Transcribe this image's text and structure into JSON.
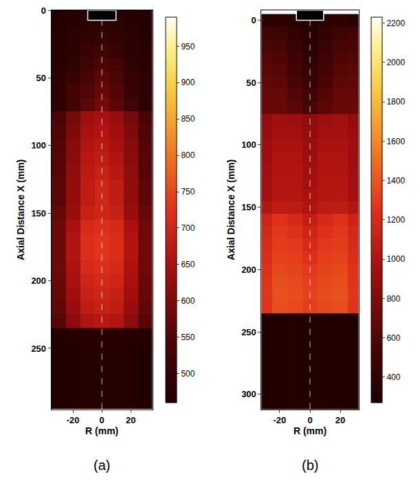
{
  "chart_data": [
    {
      "type": "heatmap",
      "title": "(a)",
      "x_label": "R (mm)",
      "y_label": "Axial Distance X (mm)",
      "x": [
        -30,
        -20,
        -10,
        0,
        10,
        20,
        30
      ],
      "y": [
        0,
        10,
        20,
        30,
        40,
        50,
        60,
        70,
        80,
        90,
        100,
        110,
        120,
        130,
        140,
        150,
        160,
        170,
        180,
        190,
        200,
        210,
        220,
        230,
        240,
        250,
        260,
        270,
        280,
        290
      ],
      "cells": [
        [
          470,
          475,
          480,
          480,
          480,
          475,
          470
        ],
        [
          470,
          480,
          485,
          490,
          485,
          480,
          470
        ],
        [
          475,
          485,
          495,
          500,
          495,
          485,
          475
        ],
        [
          480,
          490,
          510,
          520,
          510,
          490,
          480
        ],
        [
          480,
          495,
          520,
          540,
          525,
          495,
          480
        ],
        [
          485,
          510,
          535,
          560,
          540,
          500,
          485
        ],
        [
          485,
          530,
          545,
          570,
          550,
          505,
          485
        ],
        [
          490,
          520,
          560,
          590,
          560,
          520,
          490
        ],
        [
          540,
          590,
          640,
          650,
          630,
          590,
          540
        ],
        [
          545,
          600,
          650,
          660,
          640,
          600,
          545
        ],
        [
          550,
          610,
          660,
          670,
          650,
          610,
          550
        ],
        [
          555,
          615,
          670,
          680,
          660,
          615,
          555
        ],
        [
          555,
          620,
          675,
          690,
          670,
          620,
          555
        ],
        [
          560,
          625,
          680,
          700,
          680,
          625,
          560
        ],
        [
          560,
          625,
          680,
          700,
          680,
          625,
          560
        ],
        [
          570,
          630,
          690,
          700,
          690,
          630,
          570
        ],
        [
          580,
          650,
          710,
          720,
          710,
          650,
          580
        ],
        [
          580,
          660,
          720,
          730,
          715,
          660,
          580
        ],
        [
          580,
          660,
          720,
          730,
          715,
          660,
          580
        ],
        [
          580,
          655,
          710,
          720,
          710,
          655,
          580
        ],
        [
          575,
          650,
          700,
          710,
          700,
          650,
          575
        ],
        [
          570,
          640,
          690,
          700,
          690,
          640,
          570
        ],
        [
          565,
          630,
          680,
          690,
          680,
          630,
          565
        ],
        [
          555,
          615,
          660,
          670,
          660,
          615,
          555
        ],
        [
          470,
          475,
          480,
          480,
          480,
          475,
          470
        ],
        [
          465,
          470,
          472,
          475,
          472,
          470,
          465
        ],
        [
          465,
          470,
          472,
          475,
          472,
          470,
          465
        ],
        [
          465,
          470,
          472,
          475,
          472,
          470,
          465
        ],
        [
          465,
          470,
          472,
          475,
          472,
          470,
          465
        ],
        [
          465,
          470,
          472,
          475,
          472,
          470,
          465
        ]
      ],
      "xlim": [
        -35,
        35
      ],
      "ylim": [
        295,
        0
      ],
      "xticks": [
        -20,
        0,
        20
      ],
      "yticks": [
        0,
        50,
        100,
        150,
        200,
        250
      ],
      "colorbar_range": [
        460,
        990
      ],
      "colorbar_ticks": [
        500,
        550,
        600,
        650,
        700,
        750,
        800,
        850,
        900,
        950
      ]
    },
    {
      "type": "heatmap",
      "title": "(b)",
      "x_label": "R (mm)",
      "y_label": "Axial Distance X (mm)",
      "x": [
        -30,
        -20,
        -10,
        0,
        10,
        20,
        30
      ],
      "y": [
        0,
        10,
        20,
        30,
        40,
        50,
        60,
        70,
        80,
        90,
        100,
        110,
        120,
        130,
        140,
        150,
        160,
        170,
        180,
        190,
        200,
        210,
        220,
        230,
        240,
        250,
        260,
        270,
        280,
        290,
        300,
        310
      ],
      "cells": [
        [
          350,
          380,
          360,
          320,
          360,
          380,
          350
        ],
        [
          500,
          480,
          400,
          340,
          400,
          480,
          500
        ],
        [
          560,
          540,
          440,
          360,
          440,
          540,
          560
        ],
        [
          600,
          580,
          480,
          380,
          480,
          580,
          600
        ],
        [
          640,
          620,
          520,
          420,
          520,
          620,
          640
        ],
        [
          660,
          650,
          560,
          460,
          560,
          650,
          660
        ],
        [
          680,
          680,
          600,
          500,
          600,
          680,
          680
        ],
        [
          700,
          700,
          640,
          560,
          640,
          700,
          700
        ],
        [
          880,
          940,
          920,
          860,
          920,
          940,
          880
        ],
        [
          900,
          960,
          950,
          880,
          950,
          960,
          900
        ],
        [
          920,
          980,
          980,
          900,
          980,
          980,
          920
        ],
        [
          930,
          1000,
          1000,
          920,
          1000,
          1000,
          930
        ],
        [
          940,
          1010,
          1010,
          940,
          1010,
          1010,
          940
        ],
        [
          950,
          1020,
          1020,
          960,
          1020,
          1020,
          950
        ],
        [
          960,
          1030,
          1030,
          980,
          1030,
          1030,
          960
        ],
        [
          1020,
          1080,
          1060,
          1000,
          1060,
          1080,
          1020
        ],
        [
          1150,
          1250,
          1200,
          1100,
          1200,
          1250,
          1150
        ],
        [
          1180,
          1280,
          1240,
          1150,
          1240,
          1280,
          1180
        ],
        [
          1200,
          1300,
          1280,
          1200,
          1280,
          1300,
          1200
        ],
        [
          1220,
          1320,
          1300,
          1240,
          1300,
          1320,
          1220
        ],
        [
          1250,
          1350,
          1330,
          1280,
          1330,
          1350,
          1250
        ],
        [
          1260,
          1370,
          1350,
          1300,
          1350,
          1370,
          1260
        ],
        [
          1270,
          1380,
          1360,
          1320,
          1360,
          1380,
          1270
        ],
        [
          1260,
          1370,
          1350,
          1300,
          1350,
          1370,
          1260
        ],
        [
          290,
          295,
          300,
          300,
          300,
          295,
          290
        ],
        [
          290,
          295,
          300,
          300,
          300,
          295,
          290
        ],
        [
          290,
          295,
          300,
          300,
          300,
          295,
          290
        ],
        [
          290,
          295,
          300,
          300,
          300,
          295,
          290
        ],
        [
          290,
          295,
          300,
          300,
          300,
          295,
          290
        ],
        [
          290,
          295,
          300,
          300,
          300,
          295,
          290
        ],
        [
          290,
          295,
          300,
          300,
          300,
          295,
          290
        ],
        [
          290,
          295,
          300,
          300,
          300,
          295,
          290
        ]
      ],
      "xlim": [
        -32,
        32
      ],
      "ylim": [
        312,
        -8
      ],
      "xticks": [
        -20,
        0,
        20
      ],
      "yticks": [
        0,
        50,
        100,
        150,
        200,
        250,
        300
      ],
      "colorbar_range": [
        270,
        2230
      ],
      "colorbar_ticks": [
        400,
        600,
        800,
        1000,
        1200,
        1400,
        1600,
        1800,
        2000,
        2200
      ]
    }
  ]
}
